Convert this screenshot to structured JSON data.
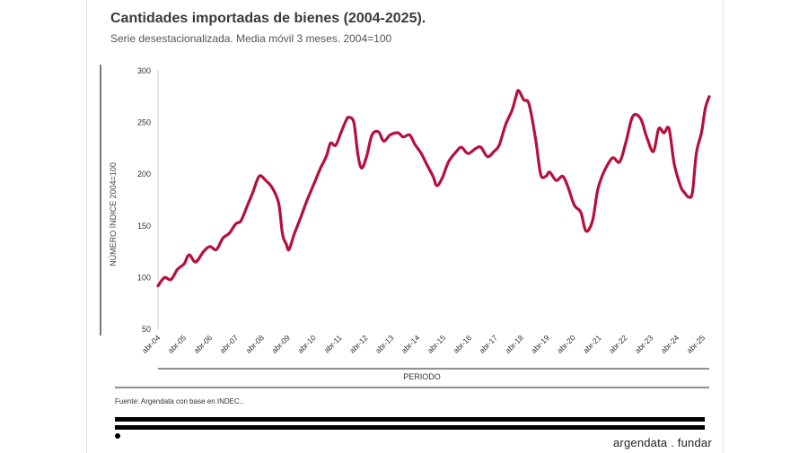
{
  "chart_data": {
    "type": "line",
    "title": "Cantidades importadas de bienes (2004-2025).",
    "subtitle": "Serie desestacionalizada. Media móvil 3 meses. 2004=100",
    "xlabel": "PERIODO",
    "ylabel": "NÚMERO ÍNDICE 2004=100",
    "ylim": [
      50,
      300
    ],
    "yticks": [
      50,
      100,
      150,
      200,
      250,
      300
    ],
    "xlim": [
      2004.25,
      2025.5
    ],
    "x_ticks": [
      {
        "x": 2004.25,
        "label": "abr-04"
      },
      {
        "x": 2005.25,
        "label": "abr-05"
      },
      {
        "x": 2006.25,
        "label": "abr-06"
      },
      {
        "x": 2007.25,
        "label": "abr-07"
      },
      {
        "x": 2008.25,
        "label": "abr-08"
      },
      {
        "x": 2009.25,
        "label": "abr-09"
      },
      {
        "x": 2010.25,
        "label": "abr-10"
      },
      {
        "x": 2011.25,
        "label": "abr-11"
      },
      {
        "x": 2012.25,
        "label": "abr-12"
      },
      {
        "x": 2013.25,
        "label": "abr-13"
      },
      {
        "x": 2014.25,
        "label": "abr-14"
      },
      {
        "x": 2015.25,
        "label": "abr-15"
      },
      {
        "x": 2016.25,
        "label": "abr-16"
      },
      {
        "x": 2017.25,
        "label": "abr-17"
      },
      {
        "x": 2018.25,
        "label": "abr-18"
      },
      {
        "x": 2019.25,
        "label": "abr-19"
      },
      {
        "x": 2020.25,
        "label": "abr-20"
      },
      {
        "x": 2021.25,
        "label": "abr-21"
      },
      {
        "x": 2022.25,
        "label": "abr-22"
      },
      {
        "x": 2023.25,
        "label": "abr-23"
      },
      {
        "x": 2024.25,
        "label": "abr-24"
      },
      {
        "x": 2025.25,
        "label": "abr-25"
      }
    ],
    "grid": false,
    "legend": "none",
    "series": [
      {
        "color": "#b5103c",
        "points": [
          [
            2004.25,
            92
          ],
          [
            2004.5,
            100
          ],
          [
            2004.75,
            98
          ],
          [
            2005.0,
            108
          ],
          [
            2005.25,
            113
          ],
          [
            2005.45,
            122
          ],
          [
            2005.7,
            115
          ],
          [
            2006.0,
            125
          ],
          [
            2006.25,
            130
          ],
          [
            2006.5,
            127
          ],
          [
            2006.75,
            138
          ],
          [
            2007.0,
            143
          ],
          [
            2007.25,
            152
          ],
          [
            2007.45,
            155
          ],
          [
            2007.7,
            170
          ],
          [
            2007.9,
            182
          ],
          [
            2008.15,
            198
          ],
          [
            2008.4,
            194
          ],
          [
            2008.65,
            187
          ],
          [
            2008.9,
            172
          ],
          [
            2009.05,
            142
          ],
          [
            2009.2,
            132
          ],
          [
            2009.3,
            127
          ],
          [
            2009.5,
            142
          ],
          [
            2009.75,
            158
          ],
          [
            2010.0,
            175
          ],
          [
            2010.25,
            190
          ],
          [
            2010.5,
            205
          ],
          [
            2010.75,
            218
          ],
          [
            2010.9,
            230
          ],
          [
            2011.1,
            228
          ],
          [
            2011.3,
            240
          ],
          [
            2011.5,
            252
          ],
          [
            2011.6,
            255
          ],
          [
            2011.8,
            250
          ],
          [
            2011.95,
            220
          ],
          [
            2012.1,
            206
          ],
          [
            2012.3,
            218
          ],
          [
            2012.5,
            238
          ],
          [
            2012.75,
            241
          ],
          [
            2012.95,
            232
          ],
          [
            2013.2,
            238
          ],
          [
            2013.5,
            240
          ],
          [
            2013.7,
            236
          ],
          [
            2013.95,
            238
          ],
          [
            2014.15,
            229
          ],
          [
            2014.4,
            220
          ],
          [
            2014.6,
            210
          ],
          [
            2014.85,
            198
          ],
          [
            2015.0,
            189
          ],
          [
            2015.2,
            196
          ],
          [
            2015.45,
            212
          ],
          [
            2015.75,
            222
          ],
          [
            2015.95,
            226
          ],
          [
            2016.2,
            220
          ],
          [
            2016.5,
            225
          ],
          [
            2016.7,
            226
          ],
          [
            2016.95,
            217
          ],
          [
            2017.2,
            222
          ],
          [
            2017.4,
            228
          ],
          [
            2017.65,
            248
          ],
          [
            2017.9,
            262
          ],
          [
            2018.05,
            275
          ],
          [
            2018.15,
            281
          ],
          [
            2018.35,
            272
          ],
          [
            2018.55,
            268
          ],
          [
            2018.8,
            235
          ],
          [
            2019.0,
            200
          ],
          [
            2019.2,
            198
          ],
          [
            2019.35,
            202
          ],
          [
            2019.6,
            194
          ],
          [
            2019.85,
            198
          ],
          [
            2020.05,
            188
          ],
          [
            2020.3,
            170
          ],
          [
            2020.55,
            163
          ],
          [
            2020.75,
            145
          ],
          [
            2021.0,
            155
          ],
          [
            2021.2,
            185
          ],
          [
            2021.4,
            200
          ],
          [
            2021.6,
            210
          ],
          [
            2021.8,
            216
          ],
          [
            2022.05,
            212
          ],
          [
            2022.3,
            232
          ],
          [
            2022.55,
            256
          ],
          [
            2022.85,
            254
          ],
          [
            2023.1,
            235
          ],
          [
            2023.35,
            222
          ],
          [
            2023.55,
            244
          ],
          [
            2023.75,
            240
          ],
          [
            2023.95,
            244
          ],
          [
            2024.15,
            210
          ],
          [
            2024.4,
            188
          ],
          [
            2024.55,
            182
          ],
          [
            2024.7,
            178
          ],
          [
            2024.85,
            182
          ],
          [
            2025.0,
            220
          ],
          [
            2025.2,
            240
          ],
          [
            2025.35,
            264
          ],
          [
            2025.5,
            275
          ]
        ]
      }
    ]
  },
  "footer": {
    "source": "Fuente: Argendata con base en INDEC..",
    "brand": "argendata . fundar"
  }
}
